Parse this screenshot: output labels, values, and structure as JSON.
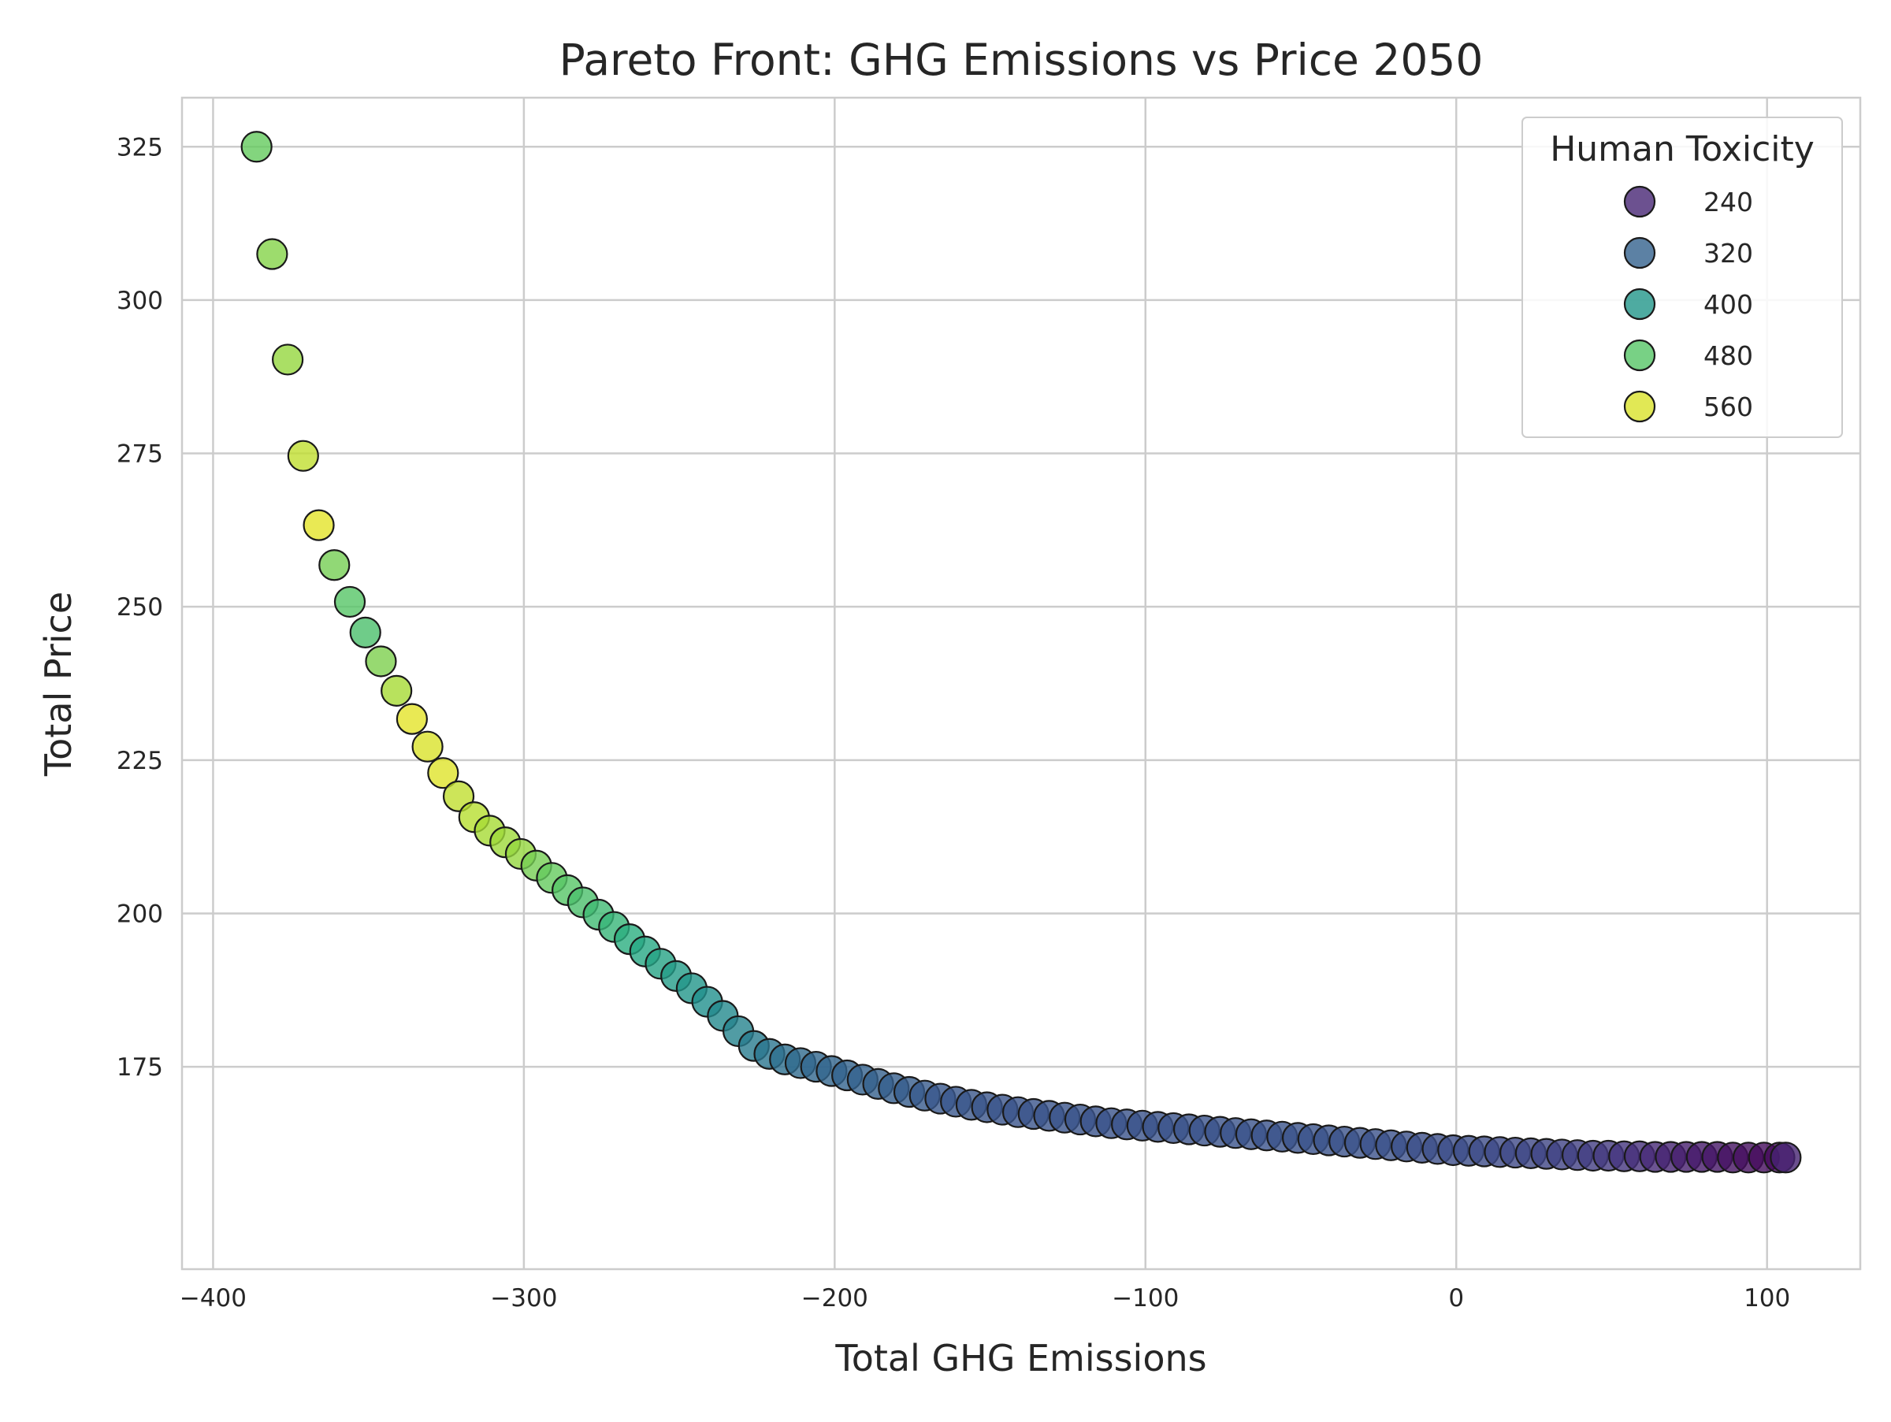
{
  "chart_data": {
    "type": "scatter",
    "title": "Pareto Front: GHG Emissions vs Price 2050",
    "xlabel": "Total GHG Emissions",
    "ylabel": "Total Price",
    "xlim": [
      -410,
      130
    ],
    "ylim": [
      142,
      333
    ],
    "xticks": [
      -400,
      -300,
      -200,
      -100,
      0,
      100
    ],
    "xtick_labels": [
      "−400",
      "−300",
      "−200",
      "−100",
      "0",
      "100"
    ],
    "yticks": [
      175,
      200,
      225,
      250,
      275,
      300,
      325
    ],
    "ytick_labels": [
      "175",
      "200",
      "225",
      "250",
      "275",
      "300",
      "325"
    ],
    "grid": true,
    "colormap": "viridis",
    "color_range": [
      200,
      580
    ],
    "legend": {
      "title": "Human Toxicity",
      "placement": "top-right",
      "entries": [
        {
          "label": "240",
          "value": 240
        },
        {
          "label": "320",
          "value": 320
        },
        {
          "label": "400",
          "value": 400
        },
        {
          "label": "480",
          "value": 480
        },
        {
          "label": "560",
          "value": 560
        }
      ]
    },
    "x": [
      -386,
      -381,
      -376,
      -371,
      -366,
      -361,
      -356,
      -351,
      -346,
      -341,
      -336,
      -331,
      -326,
      -321,
      -316,
      -311,
      -306,
      -301,
      -296,
      -291,
      -286,
      -281,
      -276,
      -271,
      -266,
      -261,
      -256,
      -251,
      -246,
      -241,
      -236,
      -231,
      -226,
      -221,
      -216,
      -211,
      -206,
      -201,
      -196,
      -191,
      -186,
      -181,
      -176,
      -171,
      -166,
      -161,
      -156,
      -151,
      -146,
      -141,
      -136,
      -131,
      -126,
      -121,
      -116,
      -111,
      -106,
      -101,
      -96,
      -91,
      -86,
      -81,
      -76,
      -71,
      -66,
      -61,
      -56,
      -51,
      -46,
      -41,
      -36,
      -31,
      -26,
      -21,
      -16,
      -11,
      -6,
      -1,
      4,
      9,
      14,
      19,
      24,
      29,
      34,
      39,
      44,
      49,
      54,
      59,
      64,
      69,
      74,
      79,
      84,
      89,
      94,
      99,
      104,
      106
    ],
    "y": [
      325,
      307.5,
      290.3,
      274.6,
      263.3,
      256.8,
      250.8,
      245.8,
      241.1,
      236.3,
      231.7,
      227.2,
      222.9,
      219.1,
      215.7,
      213.5,
      211.6,
      209.7,
      207.8,
      205.8,
      203.8,
      201.8,
      199.8,
      197.8,
      195.8,
      193.8,
      191.8,
      189.8,
      187.8,
      185.6,
      183.3,
      180.8,
      178.4,
      177.1,
      176.2,
      175.6,
      175.0,
      174.3,
      173.6,
      172.9,
      172.2,
      171.5,
      170.9,
      170.3,
      169.8,
      169.3,
      168.8,
      168.4,
      168.0,
      167.6,
      167.3,
      167.0,
      166.7,
      166.4,
      166.1,
      165.8,
      165.6,
      165.4,
      165.2,
      165.0,
      164.8,
      164.6,
      164.4,
      164.2,
      164.0,
      163.8,
      163.6,
      163.4,
      163.2,
      163.0,
      162.8,
      162.6,
      162.4,
      162.2,
      162.0,
      161.8,
      161.6,
      161.4,
      161.3,
      161.2,
      161.1,
      161.0,
      160.9,
      160.8,
      160.7,
      160.6,
      160.5,
      160.5,
      160.4,
      160.4,
      160.3,
      160.3,
      160.3,
      160.3,
      160.3,
      160.2,
      160.2,
      160.2,
      160.2,
      160.2
    ],
    "color_values": [
      490,
      510,
      520,
      545,
      565,
      500,
      480,
      470,
      505,
      530,
      565,
      560,
      562,
      545,
      540,
      530,
      525,
      520,
      500,
      490,
      480,
      470,
      460,
      452,
      440,
      430,
      420,
      410,
      400,
      390,
      380,
      370,
      360,
      350,
      340,
      332,
      328,
      325,
      322,
      320,
      318,
      315,
      312,
      308,
      305,
      303,
      302,
      301,
      300,
      300,
      299,
      299,
      299,
      299,
      298,
      298,
      298,
      298,
      298,
      298,
      298,
      298,
      298,
      298,
      298,
      297,
      297,
      297,
      297,
      297,
      296,
      296,
      295,
      295,
      294,
      293,
      292,
      291,
      290,
      288,
      286,
      284,
      282,
      279,
      276,
      273,
      269,
      264,
      258,
      251,
      244,
      238,
      232,
      227,
      222,
      218,
      214,
      211,
      209,
      238
    ]
  }
}
